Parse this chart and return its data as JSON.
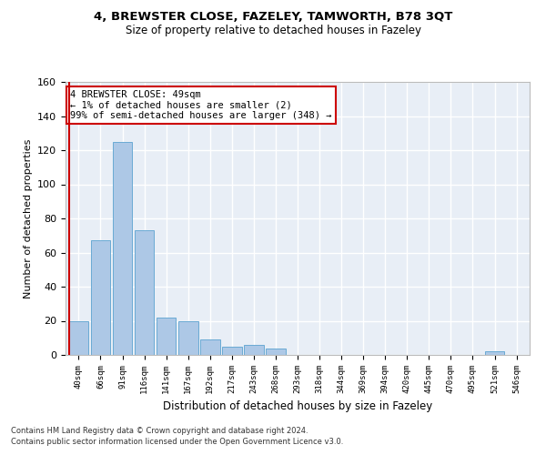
{
  "title": "4, BREWSTER CLOSE, FAZELEY, TAMWORTH, B78 3QT",
  "subtitle": "Size of property relative to detached houses in Fazeley",
  "xlabel": "Distribution of detached houses by size in Fazeley",
  "ylabel": "Number of detached properties",
  "categories": [
    "40sqm",
    "66sqm",
    "91sqm",
    "116sqm",
    "141sqm",
    "167sqm",
    "192sqm",
    "217sqm",
    "243sqm",
    "268sqm",
    "293sqm",
    "318sqm",
    "344sqm",
    "369sqm",
    "394sqm",
    "420sqm",
    "445sqm",
    "470sqm",
    "495sqm",
    "521sqm",
    "546sqm"
  ],
  "values": [
    20,
    67,
    125,
    73,
    22,
    20,
    9,
    5,
    6,
    4,
    0,
    0,
    0,
    0,
    0,
    0,
    0,
    0,
    0,
    2,
    0
  ],
  "bar_color": "#adc8e6",
  "bar_edge_color": "#6aaad4",
  "highlight_color": "#cc0000",
  "annotation_text": "4 BREWSTER CLOSE: 49sqm\n← 1% of detached houses are smaller (2)\n99% of semi-detached houses are larger (348) →",
  "annotation_box_color": "#ffffff",
  "annotation_box_edge_color": "#cc0000",
  "ylim": [
    0,
    160
  ],
  "yticks": [
    0,
    20,
    40,
    60,
    80,
    100,
    120,
    140,
    160
  ],
  "bg_color": "#e8eef6",
  "grid_color": "#ffffff",
  "footer_line1": "Contains HM Land Registry data © Crown copyright and database right 2024.",
  "footer_line2": "Contains public sector information licensed under the Open Government Licence v3.0."
}
